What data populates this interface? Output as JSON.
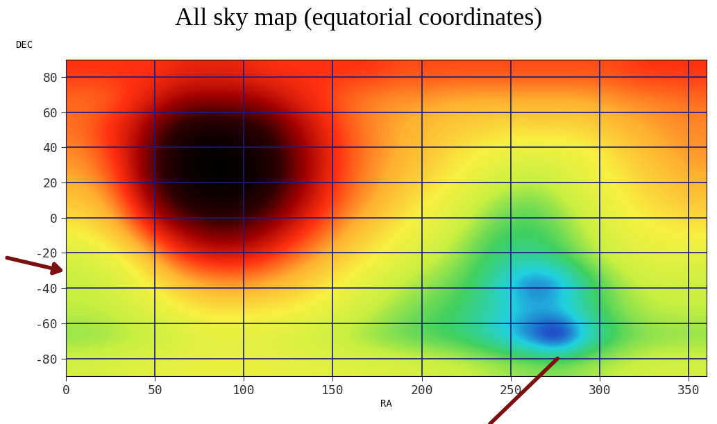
{
  "chart_data": {
    "type": "heatmap",
    "title": "All sky map (equatorial coordinates)",
    "x_label": "RA",
    "y_label": "DEC",
    "xlim": [
      0,
      360
    ],
    "ylim": [
      -90,
      90
    ],
    "xticks": [
      0,
      50,
      100,
      150,
      200,
      250,
      300,
      350
    ],
    "yticks": [
      -80,
      -60,
      -40,
      -20,
      0,
      20,
      40,
      60,
      80
    ],
    "grid": true,
    "color_range": [
      0,
      10
    ],
    "cells": [
      [
        4.3,
        4.4,
        4.5,
        4.6,
        4.7,
        4.7,
        4.7,
        4.7,
        4.6,
        4.6,
        4.5,
        4.5,
        4.4,
        4.3,
        4.2,
        4.0,
        3.8,
        3.6,
        3.6,
        3.8,
        4.0,
        4.2,
        4.3,
        4.3
      ],
      [
        3.5,
        3.6,
        3.8,
        4.0,
        4.3,
        4.5,
        4.5,
        4.4,
        4.3,
        4.1,
        3.8,
        3.5,
        3.2,
        3.0,
        2.8,
        2.4,
        1.8,
        1.0,
        0.2,
        1.8,
        2.8,
        3.3,
        3.5,
        3.5
      ],
      [
        4.0,
        4.0,
        4.3,
        4.6,
        5.0,
        5.2,
        5.2,
        5.1,
        5.0,
        4.7,
        4.4,
        4.0,
        3.6,
        3.3,
        3.0,
        2.6,
        2.2,
        2.0,
        2.2,
        2.7,
        3.4,
        3.8,
        4.0,
        4.0
      ],
      [
        4.0,
        4.2,
        4.6,
        5.2,
        5.8,
        6.1,
        6.2,
        6.0,
        5.7,
        5.3,
        4.8,
        4.4,
        4.0,
        3.6,
        3.3,
        2.8,
        2.0,
        1.2,
        1.5,
        2.6,
        3.5,
        4.0,
        4.2,
        4.1
      ],
      [
        4.3,
        4.6,
        5.2,
        6.2,
        7.0,
        7.3,
        7.3,
        7.0,
        6.5,
        6.0,
        5.5,
        5.0,
        4.6,
        4.2,
        3.7,
        3.1,
        2.7,
        2.6,
        3.0,
        3.6,
        4.2,
        4.5,
        4.6,
        4.5
      ],
      [
        5.0,
        5.5,
        6.3,
        7.3,
        8.0,
        8.5,
        8.5,
        8.0,
        7.3,
        6.7,
        6.0,
        5.5,
        5.0,
        4.6,
        4.2,
        3.5,
        3.0,
        3.0,
        3.3,
        4.0,
        4.5,
        4.8,
        5.0,
        5.1
      ],
      [
        5.6,
        6.0,
        7.0,
        8.3,
        9.3,
        9.6,
        9.5,
        9.0,
        8.0,
        7.2,
        6.5,
        6.0,
        5.5,
        5.0,
        4.6,
        4.0,
        3.5,
        3.3,
        3.8,
        4.3,
        4.8,
        5.2,
        5.4,
        5.6
      ],
      [
        6.0,
        6.5,
        7.5,
        9.0,
        9.8,
        10.0,
        10.0,
        9.6,
        8.5,
        7.5,
        6.7,
        6.2,
        5.8,
        5.4,
        5.0,
        4.6,
        4.2,
        4.0,
        4.3,
        4.7,
        5.0,
        5.4,
        5.7,
        6.0
      ],
      [
        6.3,
        6.8,
        7.6,
        9.0,
        9.8,
        10.0,
        9.8,
        9.5,
        8.5,
        7.5,
        6.8,
        6.3,
        6.0,
        5.7,
        5.3,
        5.0,
        4.8,
        4.5,
        4.7,
        4.8,
        5.3,
        5.7,
        6.0,
        6.2
      ],
      [
        6.5,
        7.0,
        7.5,
        8.5,
        9.3,
        9.5,
        9.3,
        9.0,
        8.0,
        7.3,
        6.7,
        6.3,
        6.0,
        5.8,
        5.6,
        5.5,
        5.3,
        5.5,
        5.4,
        5.5,
        5.8,
        6.0,
        6.2,
        6.3
      ],
      [
        6.5,
        6.5,
        7.0,
        7.5,
        8.0,
        8.0,
        8.0,
        7.8,
        7.3,
        7.0,
        6.5,
        6.3,
        6.2,
        6.2,
        6.0,
        6.0,
        6.0,
        6.0,
        6.0,
        6.0,
        6.2,
        6.3,
        6.4,
        6.5
      ],
      [
        7.0,
        7.0,
        7.0,
        7.0,
        7.2,
        7.2,
        7.2,
        7.0,
        7.0,
        7.0,
        7.0,
        7.0,
        6.8,
        6.8,
        6.8,
        6.8,
        6.8,
        6.8,
        6.8,
        6.8,
        6.8,
        7.0,
        7.0,
        7.0
      ]
    ]
  }
}
